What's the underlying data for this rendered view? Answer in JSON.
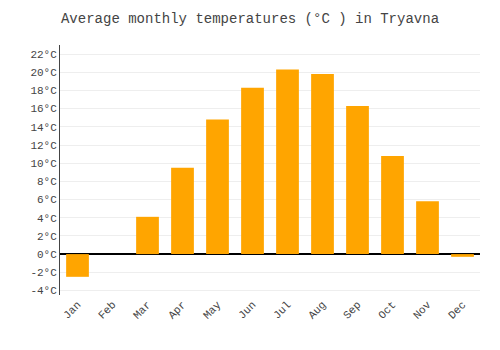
{
  "chart_data": {
    "type": "bar",
    "title": "Average monthly temperatures (°C ) in Tryavna",
    "categories": [
      "Jan",
      "Feb",
      "Mar",
      "Apr",
      "May",
      "Jun",
      "Jul",
      "Aug",
      "Sep",
      "Oct",
      "Nov",
      "Dec"
    ],
    "values": [
      -2.5,
      0.0,
      4.1,
      9.5,
      14.8,
      18.3,
      20.3,
      19.8,
      16.3,
      10.8,
      5.8,
      -0.3
    ],
    "color": "#FFA500",
    "ylim": [
      -4.5,
      23
    ],
    "yticks": [
      {
        "value": -4,
        "label": "-4°C"
      },
      {
        "value": -2,
        "label": "-2°C"
      },
      {
        "value": 0,
        "label": "0°C"
      },
      {
        "value": 2,
        "label": "2°C"
      },
      {
        "value": 4,
        "label": "4°C"
      },
      {
        "value": 6,
        "label": "6°C"
      },
      {
        "value": 8,
        "label": "8°C"
      },
      {
        "value": 10,
        "label": "10°C"
      },
      {
        "value": 12,
        "label": "12°C"
      },
      {
        "value": 14,
        "label": "14°C"
      },
      {
        "value": 16,
        "label": "16°C"
      },
      {
        "value": 18,
        "label": "18°C"
      },
      {
        "value": 20,
        "label": "20°C"
      },
      {
        "value": 22,
        "label": "22°C"
      }
    ],
    "grid": true
  }
}
